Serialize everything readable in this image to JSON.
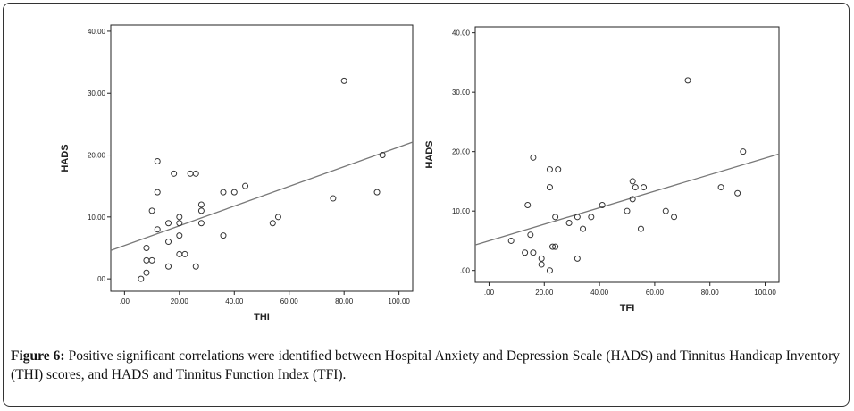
{
  "chart_data": [
    {
      "type": "scatter",
      "title": "",
      "xlabel": "THI",
      "ylabel": "HADS",
      "xlim": [
        -5,
        105
      ],
      "ylim": [
        -2,
        41
      ],
      "xticks": [
        ".00",
        "20.00",
        "40.00",
        "60.00",
        "80.00",
        "100.00"
      ],
      "yticks": [
        ".00",
        "10.00",
        "20.00",
        "30.00",
        "40.00"
      ],
      "points": [
        {
          "x": 6,
          "y": 0
        },
        {
          "x": 8,
          "y": 1
        },
        {
          "x": 8,
          "y": 3
        },
        {
          "x": 8,
          "y": 5
        },
        {
          "x": 10,
          "y": 3
        },
        {
          "x": 10,
          "y": 11
        },
        {
          "x": 12,
          "y": 8
        },
        {
          "x": 12,
          "y": 14
        },
        {
          "x": 12,
          "y": 19
        },
        {
          "x": 16,
          "y": 2
        },
        {
          "x": 16,
          "y": 6
        },
        {
          "x": 16,
          "y": 9
        },
        {
          "x": 18,
          "y": 17
        },
        {
          "x": 20,
          "y": 4
        },
        {
          "x": 20,
          "y": 7
        },
        {
          "x": 20,
          "y": 9
        },
        {
          "x": 20,
          "y": 10
        },
        {
          "x": 22,
          "y": 4
        },
        {
          "x": 24,
          "y": 17
        },
        {
          "x": 26,
          "y": 17
        },
        {
          "x": 26,
          "y": 2
        },
        {
          "x": 28,
          "y": 9
        },
        {
          "x": 28,
          "y": 11
        },
        {
          "x": 28,
          "y": 12
        },
        {
          "x": 36,
          "y": 7
        },
        {
          "x": 36,
          "y": 14
        },
        {
          "x": 40,
          "y": 14
        },
        {
          "x": 44,
          "y": 15
        },
        {
          "x": 54,
          "y": 9
        },
        {
          "x": 56,
          "y": 10
        },
        {
          "x": 76,
          "y": 13
        },
        {
          "x": 80,
          "y": 32
        },
        {
          "x": 92,
          "y": 14
        },
        {
          "x": 94,
          "y": 20
        }
      ],
      "fit_line": {
        "x": [
          -5,
          105
        ],
        "y": [
          4.6,
          22.1
        ]
      }
    },
    {
      "type": "scatter",
      "title": "",
      "xlabel": "TFI",
      "ylabel": "HADS",
      "xlim": [
        -5,
        105
      ],
      "ylim": [
        -2,
        41
      ],
      "xticks": [
        ".00",
        "20.00",
        "40.00",
        "60.00",
        "80.00",
        "100.00"
      ],
      "yticks": [
        ".00",
        "10.00",
        "20.00",
        "30.00",
        "40.00"
      ],
      "points": [
        {
          "x": 8,
          "y": 5
        },
        {
          "x": 13,
          "y": 3
        },
        {
          "x": 14,
          "y": 11
        },
        {
          "x": 15,
          "y": 6
        },
        {
          "x": 16,
          "y": 3
        },
        {
          "x": 16,
          "y": 19
        },
        {
          "x": 19,
          "y": 1
        },
        {
          "x": 19,
          "y": 2
        },
        {
          "x": 22,
          "y": 0
        },
        {
          "x": 22,
          "y": 14
        },
        {
          "x": 22,
          "y": 17
        },
        {
          "x": 23,
          "y": 4
        },
        {
          "x": 24,
          "y": 4
        },
        {
          "x": 24,
          "y": 9
        },
        {
          "x": 25,
          "y": 17
        },
        {
          "x": 29,
          "y": 8
        },
        {
          "x": 32,
          "y": 2
        },
        {
          "x": 32,
          "y": 9
        },
        {
          "x": 34,
          "y": 7
        },
        {
          "x": 37,
          "y": 9
        },
        {
          "x": 41,
          "y": 11
        },
        {
          "x": 50,
          "y": 10
        },
        {
          "x": 52,
          "y": 12
        },
        {
          "x": 52,
          "y": 15
        },
        {
          "x": 53,
          "y": 14
        },
        {
          "x": 55,
          "y": 7
        },
        {
          "x": 56,
          "y": 14
        },
        {
          "x": 64,
          "y": 10
        },
        {
          "x": 67,
          "y": 9
        },
        {
          "x": 72,
          "y": 32
        },
        {
          "x": 84,
          "y": 14
        },
        {
          "x": 90,
          "y": 13
        },
        {
          "x": 92,
          "y": 20
        }
      ],
      "fit_line": {
        "x": [
          -5,
          105
        ],
        "y": [
          4.3,
          19.6
        ]
      }
    }
  ],
  "caption": {
    "label": "Figure 6:",
    "text": " Positive significant correlations were identified between Hospital Anxiety and Depression Scale (HADS) and Tinnitus Handicap Inventory (THI) scores, and HADS and Tinnitus Function Index (TFI)."
  }
}
